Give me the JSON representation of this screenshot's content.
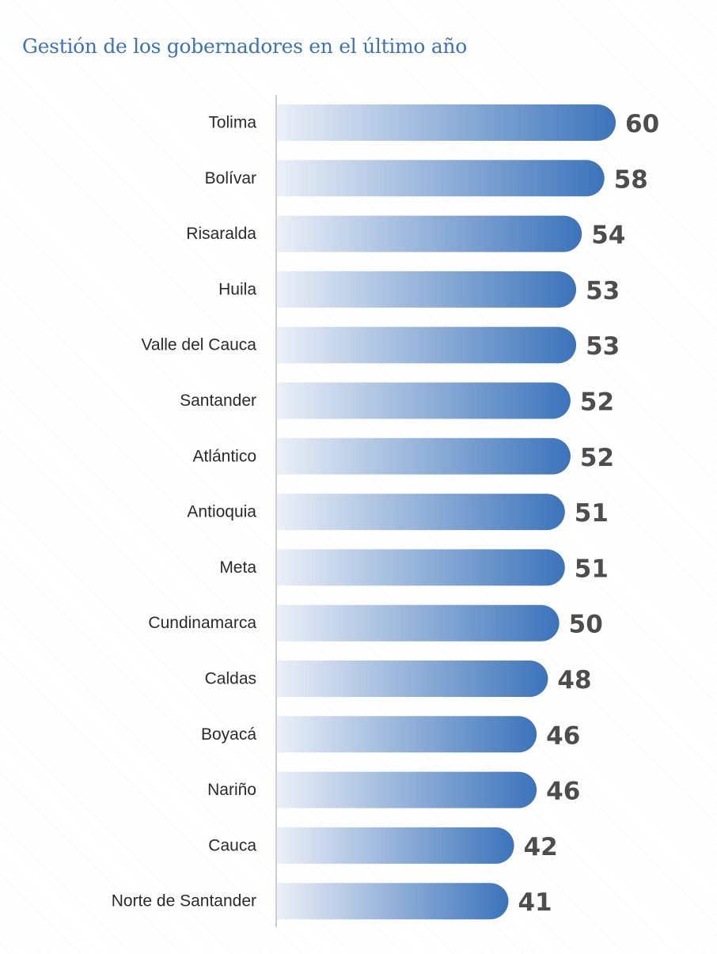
{
  "chart_data": {
    "type": "bar",
    "orientation": "horizontal",
    "title": "Gestión de los gobernadores en el último año",
    "categories": [
      "Tolima",
      "Bolívar",
      "Risaralda",
      "Huila",
      "Valle del Cauca",
      "Santander",
      "Atlántico",
      "Antioquia",
      "Meta",
      "Cundinamarca",
      "Caldas",
      "Boyacá",
      "Nariño",
      "Cauca",
      "Norte de Santander"
    ],
    "values": [
      60,
      58,
      54,
      53,
      53,
      52,
      52,
      51,
      51,
      50,
      48,
      46,
      46,
      42,
      41
    ],
    "xlim": [
      0,
      60
    ],
    "grid": false,
    "legend": "none",
    "colors": {
      "bar_start": "#ecf0f8",
      "bar_end": "#3b73bb",
      "title": "#3a73b6",
      "value_text": "#4d4d4d",
      "axis": "#bdbdbd"
    }
  }
}
